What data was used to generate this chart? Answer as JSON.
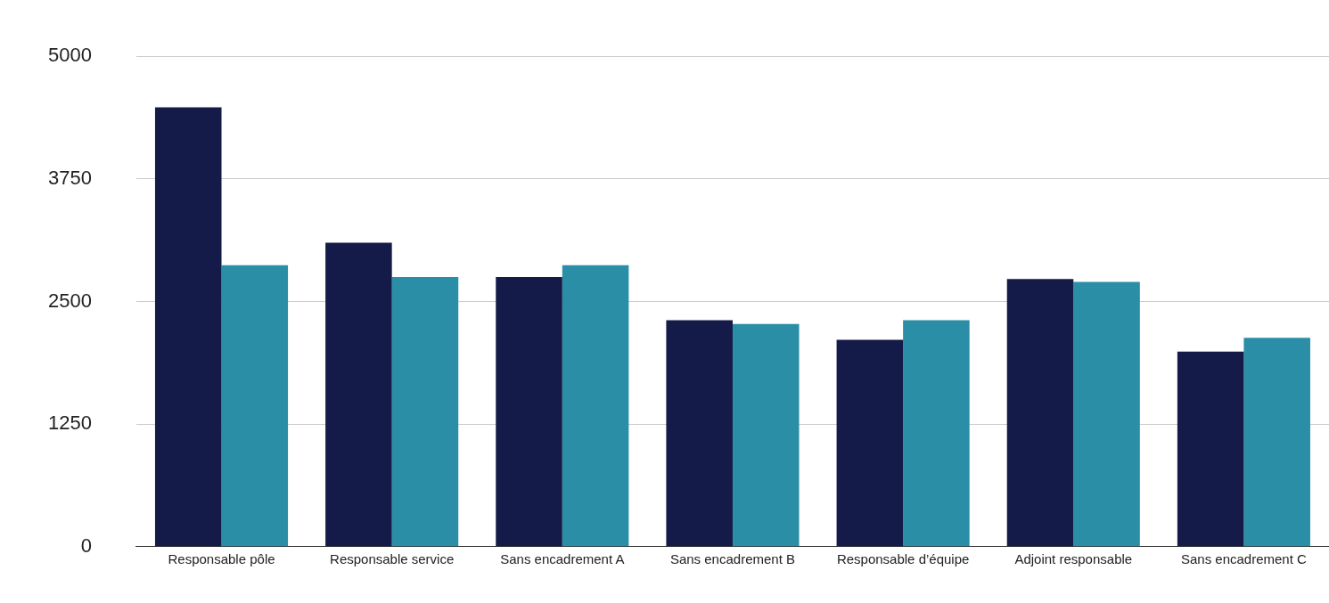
{
  "chart_data": {
    "type": "bar",
    "categories": [
      "Responsable pôle",
      "Responsable service",
      "Sans encadrement A",
      "Sans encadrement B",
      "Responsable d’équipe",
      "Adjoint responsable",
      "Sans encadrement C"
    ],
    "series": [
      {
        "color": "#151b48",
        "values": [
          4480,
          3100,
          2750,
          2310,
          2110,
          2730,
          1990
        ]
      },
      {
        "color": "#2a8ea6",
        "values": [
          2870,
          2750,
          2870,
          2270,
          2310,
          2700,
          2130
        ]
      }
    ],
    "ylim": [
      0,
      5000
    ],
    "yticks": [
      0,
      1250,
      2500,
      3750,
      5000
    ],
    "grid": "y",
    "legend": false
  }
}
